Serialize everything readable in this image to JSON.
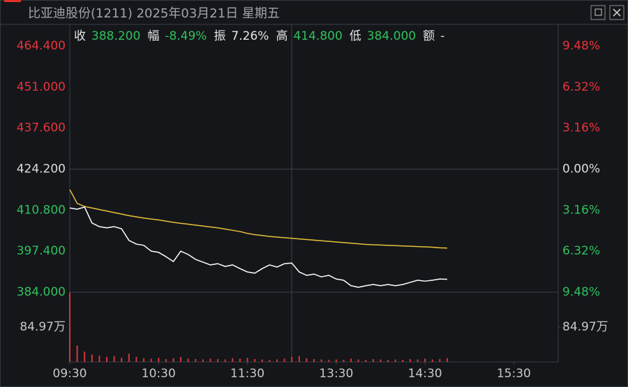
{
  "chart_data": {
    "type": "line",
    "title": "比亚迪股份(1211) 2025年03月21日 星期五",
    "quote": [
      {
        "label": "收",
        "value": "388.200",
        "color": "#2fc15b"
      },
      {
        "label": "幅",
        "value": "-8.49%",
        "color": "#2fc15b"
      },
      {
        "label": "振",
        "value": "7.26%",
        "color": "#e6e6e6"
      },
      {
        "label": "高",
        "value": "414.800",
        "color": "#2fc15b"
      },
      {
        "label": "低",
        "value": "384.000",
        "color": "#2fc15b"
      },
      {
        "label": "额",
        "value": "-",
        "color": "#e6e6e6"
      }
    ],
    "x": [
      0,
      5,
      10,
      15,
      20,
      25,
      30,
      35,
      40,
      45,
      50,
      55,
      60,
      65,
      70,
      75,
      80,
      85,
      90,
      95,
      100,
      105,
      110,
      115,
      120,
      125,
      130,
      135,
      140,
      145,
      150,
      155,
      160,
      165,
      170,
      175,
      180,
      185,
      190,
      195,
      200,
      205,
      210,
      215,
      220,
      225,
      230,
      235,
      240,
      245,
      250,
      255
    ],
    "xlim": [
      0,
      330
    ],
    "xticks": [
      {
        "value": 0,
        "label": "09:30"
      },
      {
        "value": 60,
        "label": "10:30"
      },
      {
        "value": 120,
        "label": "11:30"
      },
      {
        "value": 180,
        "label": "13:30"
      },
      {
        "value": 240,
        "label": "14:30"
      },
      {
        "value": 300,
        "label": "15:30"
      }
    ],
    "ylim": [
      384.0,
      464.4
    ],
    "yticks": [
      {
        "value": 464.4,
        "label": "464.400"
      },
      {
        "value": 451.0,
        "label": "451.000"
      },
      {
        "value": 437.6,
        "label": "437.600"
      },
      {
        "value": 424.2,
        "label": "424.200"
      },
      {
        "value": 410.8,
        "label": "410.800"
      },
      {
        "value": 397.4,
        "label": "397.400"
      },
      {
        "value": 384.0,
        "label": "384.000"
      }
    ],
    "y2lim": [
      -9.48,
      9.48
    ],
    "y2ticks": [
      {
        "value": 9.48,
        "label": "9.48%"
      },
      {
        "value": 6.32,
        "label": "6.32%"
      },
      {
        "value": 3.16,
        "label": "3.16%"
      },
      {
        "value": 0,
        "label": "0.00%"
      },
      {
        "value": -3.16,
        "label": "3.16%"
      },
      {
        "value": -6.32,
        "label": "6.32%"
      },
      {
        "value": -9.48,
        "label": "9.48%"
      }
    ],
    "series": [
      {
        "color": "#ffffff",
        "values": [
          411.5,
          411.1,
          411.8,
          406.6,
          405.4,
          405.0,
          405.4,
          404.7,
          400.9,
          399.7,
          399.3,
          397.4,
          397.0,
          395.6,
          394.0,
          397.4,
          396.3,
          394.7,
          393.8,
          392.9,
          393.3,
          392.4,
          392.9,
          391.7,
          390.6,
          390.2,
          391.7,
          392.9,
          392.2,
          393.3,
          393.5,
          390.6,
          389.5,
          389.9,
          389.0,
          389.5,
          388.3,
          387.9,
          386.1,
          385.6,
          386.1,
          386.5,
          386.1,
          386.5,
          386.1,
          386.5,
          387.2,
          387.9,
          387.6,
          387.9,
          388.3,
          388.2
        ]
      },
      {
        "color": "#e8c23a",
        "values": [
          417.5,
          413.0,
          412.0,
          411.5,
          411.0,
          410.5,
          410.0,
          409.5,
          409.0,
          408.6,
          408.2,
          407.9,
          407.6,
          407.2,
          406.8,
          406.5,
          406.2,
          405.9,
          405.6,
          405.3,
          405.0,
          404.6,
          404.2,
          403.8,
          403.2,
          402.8,
          402.5,
          402.2,
          402.0,
          401.8,
          401.6,
          401.4,
          401.2,
          401.0,
          400.8,
          400.6,
          400.4,
          400.2,
          400.0,
          399.8,
          399.6,
          399.5,
          399.4,
          399.3,
          399.2,
          399.1,
          399.0,
          398.9,
          398.8,
          398.7,
          398.5,
          398.4
        ]
      }
    ],
    "volume": {
      "color": "#d03a3a",
      "ylim": [
        0,
        169.94
      ],
      "yticks": [
        {
          "value": 84.97,
          "label": "84.97万"
        }
      ],
      "values": [
        169,
        40,
        25,
        18,
        15,
        12,
        14,
        10,
        20,
        12,
        9,
        8,
        10,
        7,
        9,
        12,
        8,
        7,
        6,
        8,
        7,
        6,
        9,
        8,
        10,
        7,
        6,
        5,
        6,
        8,
        12,
        14,
        9,
        7,
        6,
        5,
        6,
        5,
        8,
        6,
        5,
        7,
        6,
        5,
        6,
        5,
        7,
        6,
        8,
        6,
        7,
        9
      ]
    }
  }
}
